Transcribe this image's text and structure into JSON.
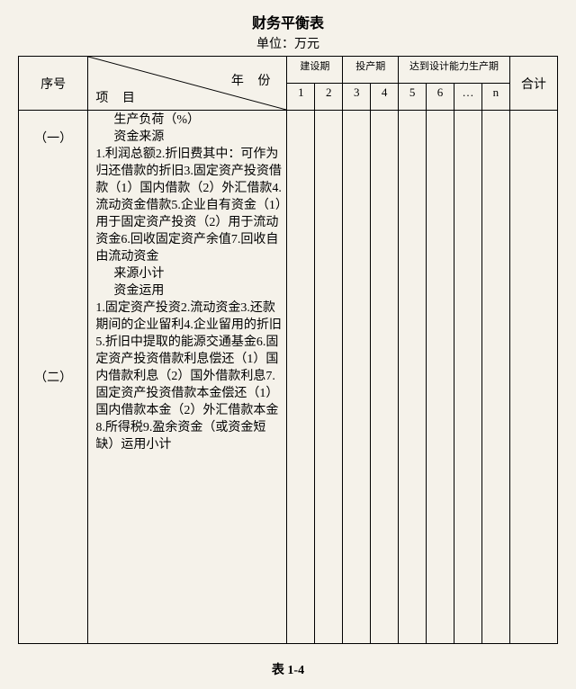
{
  "title": "财务平衡表",
  "unit_label": "单位：万元",
  "header": {
    "seq": "序号",
    "year": "年 份",
    "project": "项 目",
    "total": "合计",
    "periods": [
      {
        "label": "建设期",
        "cols": [
          "1",
          "2"
        ]
      },
      {
        "label": "投产期",
        "cols": [
          "3",
          "4"
        ]
      },
      {
        "label": "达到设计能力生产期",
        "cols": [
          "5",
          "6",
          "…",
          "n"
        ]
      }
    ]
  },
  "sections": [
    {
      "seq": "（一）",
      "items": [
        {
          "text": "生产负荷（%）",
          "indent": 1
        },
        {
          "text": "资金来源",
          "indent": 1
        },
        {
          "text": "1.利润总额",
          "indent": 0
        },
        {
          "text": "2.折旧费",
          "indent": 0
        },
        {
          "text": "其中：可作为归还借款的折旧",
          "indent": 0
        },
        {
          "text": "3.固定资产投资借款",
          "indent": 0
        },
        {
          "text": "（1）国内借款",
          "indent": 0
        },
        {
          "text": "（2）外汇借款",
          "indent": 0
        },
        {
          "text": "4.流动资金借款",
          "indent": 0
        },
        {
          "text": "5.企业自有资金",
          "indent": 0
        },
        {
          "text": "（1）用于固定资产投资",
          "indent": 0
        },
        {
          "text": "（2）用于流动资金",
          "indent": 0
        },
        {
          "text": "6.回收固定资产余值",
          "indent": 0
        },
        {
          "text": "7.回收自由流动资金",
          "indent": 0
        }
      ]
    },
    {
      "seq": "（二）",
      "items": [
        {
          "text": "来源小计",
          "indent": 1
        },
        {
          "text": "资金运用",
          "indent": 1
        },
        {
          "text": "1.固定资产投资",
          "indent": 0
        },
        {
          "text": "2.流动资金",
          "indent": 0
        },
        {
          "text": "3.还款期间的企业留利",
          "indent": 0
        },
        {
          "text": "4.企业留用的折旧",
          "indent": 0
        },
        {
          "text": "5.折旧中提取的能源交通基金",
          "indent": 0
        },
        {
          "text": "6.固定资产投资借款利息偿还",
          "indent": 0
        },
        {
          "text": "（1）国内借款利息",
          "indent": 0
        },
        {
          "text": "（2）国外借款利息",
          "indent": 0
        },
        {
          "text": "7.固定资产投资借款本金偿还",
          "indent": 0
        },
        {
          "text": "（1）国内借款本金",
          "indent": 0
        },
        {
          "text": "（2）外汇借款本金",
          "indent": 0
        },
        {
          "text": "8.所得税",
          "indent": 0
        },
        {
          "text": "9.盈余资金（或资金短缺）",
          "indent": 0
        },
        {
          "text": "运用小计",
          "indent": 0
        }
      ]
    }
  ],
  "footer": "表 1-4",
  "colors": {
    "background": "#f5f2ea",
    "border": "#000000",
    "text": "#000000"
  }
}
